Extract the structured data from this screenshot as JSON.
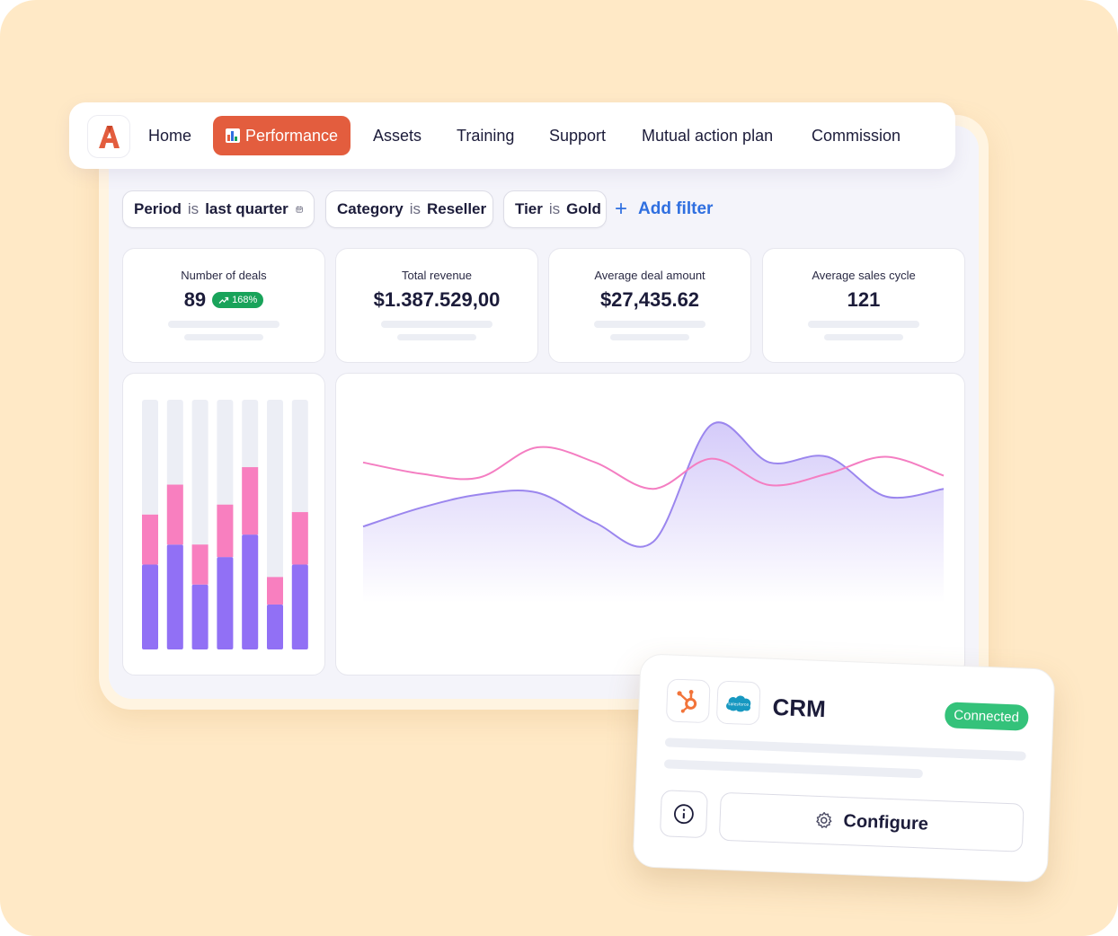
{
  "nav": {
    "items": [
      {
        "label": "Home"
      },
      {
        "label": "Performance",
        "active": true
      },
      {
        "label": "Assets"
      },
      {
        "label": "Training"
      },
      {
        "label": "Support"
      },
      {
        "label": "Mutual action plan"
      },
      {
        "label": "Commission"
      }
    ],
    "logo_icon": "brand-a-logo",
    "active_color": "#e35d3e"
  },
  "filters": [
    {
      "field": "Period",
      "op": "is",
      "value": "last quarter",
      "icon": "calendar-icon"
    },
    {
      "field": "Category",
      "op": "is",
      "value": "Reseller"
    },
    {
      "field": "Tier",
      "op": "is",
      "value": "Gold"
    }
  ],
  "add_filter": {
    "label": "Add filter",
    "icon": "plus-icon"
  },
  "metrics": [
    {
      "label": "Number of deals",
      "value": "89",
      "badge": "168%",
      "badge_icon": "trend-up-icon"
    },
    {
      "label": "Total revenue",
      "value": "$1.387.529,00"
    },
    {
      "label": "Average deal amount",
      "value": "$27,435.62"
    },
    {
      "label": "Average sales cycle",
      "value": "121"
    }
  ],
  "chart_data": [
    {
      "type": "bar",
      "stacked": true,
      "categories": [
        "1",
        "2",
        "3",
        "4",
        "5",
        "6",
        "7"
      ],
      "series": [
        {
          "values": [
            0.34,
            0.42,
            0.26,
            0.37,
            0.46,
            0.18,
            0.34
          ],
          "color": "#9170f5"
        },
        {
          "values": [
            0.2,
            0.24,
            0.16,
            0.21,
            0.27,
            0.11,
            0.21
          ],
          "color": "#f87fbf"
        }
      ],
      "track_color": "#eceef5",
      "ylim": [
        0,
        1
      ]
    },
    {
      "type": "line",
      "x": [
        0,
        1,
        2,
        3,
        4,
        5,
        6,
        7,
        8,
        9,
        10
      ],
      "series": [
        {
          "values": [
            0.38,
            0.48,
            0.55,
            0.56,
            0.4,
            0.3,
            0.92,
            0.72,
            0.75,
            0.54,
            0.58
          ],
          "color": "#9b86ee",
          "area": true
        },
        {
          "values": [
            0.72,
            0.66,
            0.64,
            0.8,
            0.72,
            0.58,
            0.74,
            0.6,
            0.66,
            0.75,
            0.65
          ],
          "color": "#f47ec2"
        }
      ],
      "ylim": [
        0,
        1
      ],
      "grid": false
    }
  ],
  "crm": {
    "title": "CRM",
    "status": "Connected",
    "status_color": "#34c27a",
    "integrations": [
      "hubspot-icon",
      "salesforce-icon"
    ],
    "salesforce_mark": "salesforce",
    "info_icon": "info-icon",
    "configure_label": "Configure",
    "configure_icon": "gear-icon"
  }
}
